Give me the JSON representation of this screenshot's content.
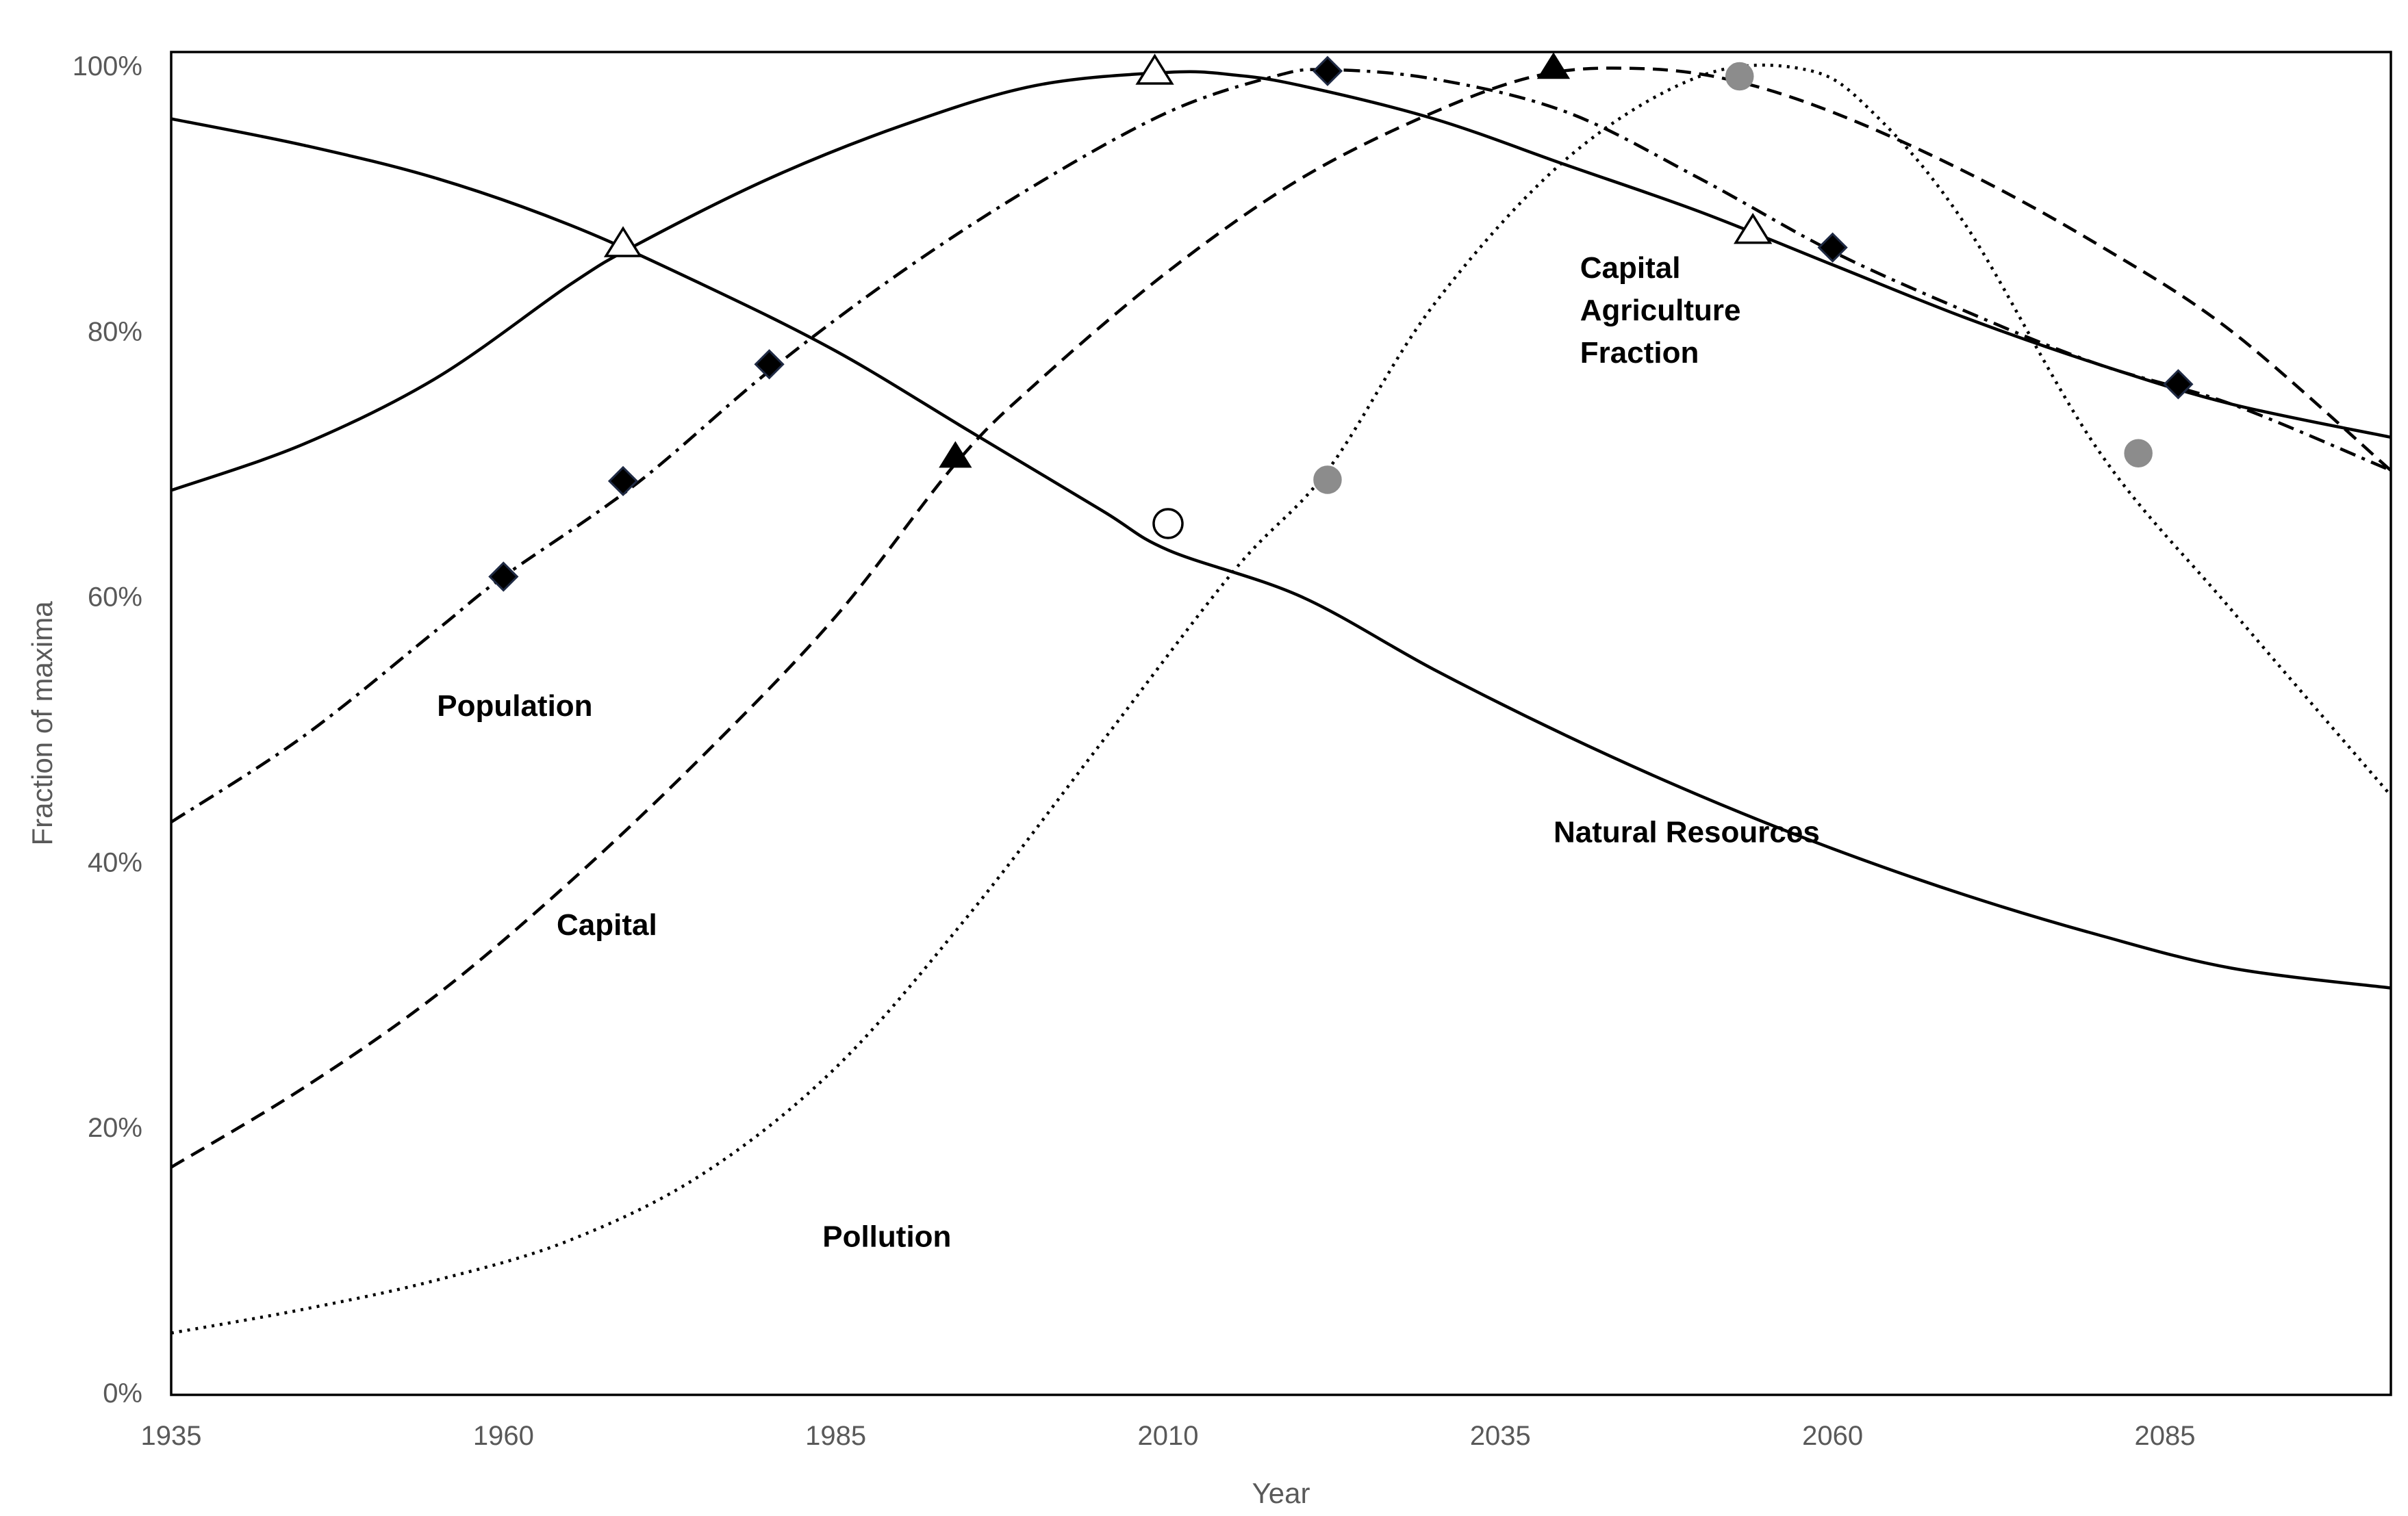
{
  "chart_data": {
    "type": "line",
    "title": "",
    "xlabel": "Year",
    "ylabel": "Fraction of maxima",
    "xlim": [
      1935,
      2102
    ],
    "ylim": [
      0,
      100
    ],
    "x_ticks": [
      1935,
      1960,
      1985,
      2010,
      2035,
      2060,
      2085
    ],
    "x_tick_labels": [
      "1935",
      "1960",
      "1985",
      "2010",
      "2035",
      "2060",
      "2085"
    ],
    "y_ticks": [
      0,
      20,
      40,
      60,
      80,
      100
    ],
    "y_tick_labels": [
      "0%",
      "20%",
      "40%",
      "60%",
      "80%",
      "100%"
    ],
    "grid": false,
    "legend": "none",
    "series": [
      {
        "name": "Natural Resources",
        "label_text": "Natural Resources",
        "style": "solid",
        "color": "#000000",
        "label_pos": {
          "x": 2039,
          "y": 41.5
        },
        "points": [
          [
            1935,
            96
          ],
          [
            1945,
            94
          ],
          [
            1955,
            91.5
          ],
          [
            1965,
            88
          ],
          [
            1975,
            83.5
          ],
          [
            1985,
            78.5
          ],
          [
            1995,
            72.5
          ],
          [
            2005,
            66.5
          ],
          [
            2010,
            63.5
          ],
          [
            2020,
            60
          ],
          [
            2030,
            54.5
          ],
          [
            2040,
            49.5
          ],
          [
            2050,
            45
          ],
          [
            2060,
            41
          ],
          [
            2070,
            37.5
          ],
          [
            2080,
            34.5
          ],
          [
            2090,
            32
          ],
          [
            2102,
            30.5
          ]
        ],
        "markers": {
          "shape": "circle",
          "fill": "#ffffff",
          "points": [
            [
              2010,
              65.5
            ]
          ]
        }
      },
      {
        "name": "Capital Agriculture Fraction",
        "label_lines": [
          "Capital",
          "Agriculture",
          "Fraction"
        ],
        "style": "solid",
        "color": "#000000",
        "label_pos": {
          "x": 2041,
          "y": 84
        },
        "points": [
          [
            1935,
            68
          ],
          [
            1945,
            71.5
          ],
          [
            1955,
            76.5
          ],
          [
            1965,
            83.5
          ],
          [
            1970,
            86.5
          ],
          [
            1980,
            91.5
          ],
          [
            1990,
            95.5
          ],
          [
            2000,
            98.5
          ],
          [
            2010,
            99.5
          ],
          [
            2015,
            99.3
          ],
          [
            2020,
            98.5
          ],
          [
            2030,
            96
          ],
          [
            2040,
            92.5
          ],
          [
            2050,
            89
          ],
          [
            2060,
            85
          ],
          [
            2070,
            81
          ],
          [
            2080,
            77.5
          ],
          [
            2090,
            74.5
          ],
          [
            2102,
            72
          ]
        ],
        "markers": {
          "shape": "triangle",
          "fill": "#ffffff",
          "points": [
            [
              1969,
              86.5
            ],
            [
              2009,
              99.5
            ],
            [
              2054,
              87.5
            ]
          ]
        }
      },
      {
        "name": "Population",
        "label_text": "Population",
        "style": "dashdot",
        "color": "#000000",
        "label_pos": {
          "x": 1955,
          "y": 51
        },
        "points": [
          [
            1935,
            43
          ],
          [
            1945,
            49.5
          ],
          [
            1955,
            57.5
          ],
          [
            1960,
            61.5
          ],
          [
            1970,
            68.5
          ],
          [
            1980,
            77
          ],
          [
            1990,
            84.5
          ],
          [
            2000,
            91
          ],
          [
            2010,
            96.5
          ],
          [
            2018,
            99.2
          ],
          [
            2022,
            99.7
          ],
          [
            2030,
            99
          ],
          [
            2040,
            96.5
          ],
          [
            2050,
            91.5
          ],
          [
            2060,
            86
          ],
          [
            2070,
            81.5
          ],
          [
            2080,
            77.5
          ],
          [
            2090,
            74.5
          ],
          [
            2102,
            69.5
          ]
        ],
        "markers": {
          "shape": "diamond",
          "fill": "#000000",
          "points": [
            [
              1960,
              61.5
            ],
            [
              1969,
              68.7
            ],
            [
              1980,
              77.5
            ],
            [
              2022,
              99.6
            ],
            [
              2060,
              86.3
            ],
            [
              2086,
              76
            ]
          ]
        }
      },
      {
        "name": "Capital",
        "label_text": "Capital",
        "style": "dashed",
        "color": "#000000",
        "label_pos": {
          "x": 1964,
          "y": 34.5
        },
        "points": [
          [
            1935,
            17
          ],
          [
            1945,
            23
          ],
          [
            1955,
            30
          ],
          [
            1965,
            38.5
          ],
          [
            1975,
            48
          ],
          [
            1985,
            58.5
          ],
          [
            1994,
            70
          ],
          [
            2000,
            76
          ],
          [
            2010,
            84.5
          ],
          [
            2020,
            91.5
          ],
          [
            2030,
            96.5
          ],
          [
            2038,
            99.3
          ],
          [
            2045,
            99.8
          ],
          [
            2052,
            99
          ],
          [
            2060,
            96.5
          ],
          [
            2070,
            92
          ],
          [
            2080,
            86.5
          ],
          [
            2090,
            80
          ],
          [
            2102,
            69.5
          ]
        ],
        "markers": {
          "shape": "triangle",
          "fill": "#000000",
          "points": [
            [
              1994,
              70.5
            ],
            [
              2039,
              99.8
            ]
          ]
        }
      },
      {
        "name": "Pollution",
        "label_text": "Pollution",
        "style": "dotted",
        "color": "#000000",
        "label_pos": {
          "x": 1984,
          "y": 11
        },
        "points": [
          [
            1935,
            4.5
          ],
          [
            1945,
            6.3
          ],
          [
            1955,
            8.5
          ],
          [
            1965,
            11.5
          ],
          [
            1975,
            16.5
          ],
          [
            1985,
            24.5
          ],
          [
            1995,
            36
          ],
          [
            2005,
            49
          ],
          [
            2015,
            62
          ],
          [
            2022,
            69.5
          ],
          [
            2030,
            82
          ],
          [
            2040,
            93
          ],
          [
            2050,
            99.2
          ],
          [
            2058,
            99.7
          ],
          [
            2063,
            96.5
          ],
          [
            2070,
            88
          ],
          [
            2080,
            71
          ],
          [
            2090,
            59
          ],
          [
            2102,
            45
          ]
        ],
        "markers": {
          "shape": "circle",
          "fill": "#8c8c8c",
          "points": [
            [
              2022,
              68.8
            ],
            [
              2053,
              99.2
            ],
            [
              2083,
              70.8
            ]
          ]
        }
      }
    ]
  }
}
